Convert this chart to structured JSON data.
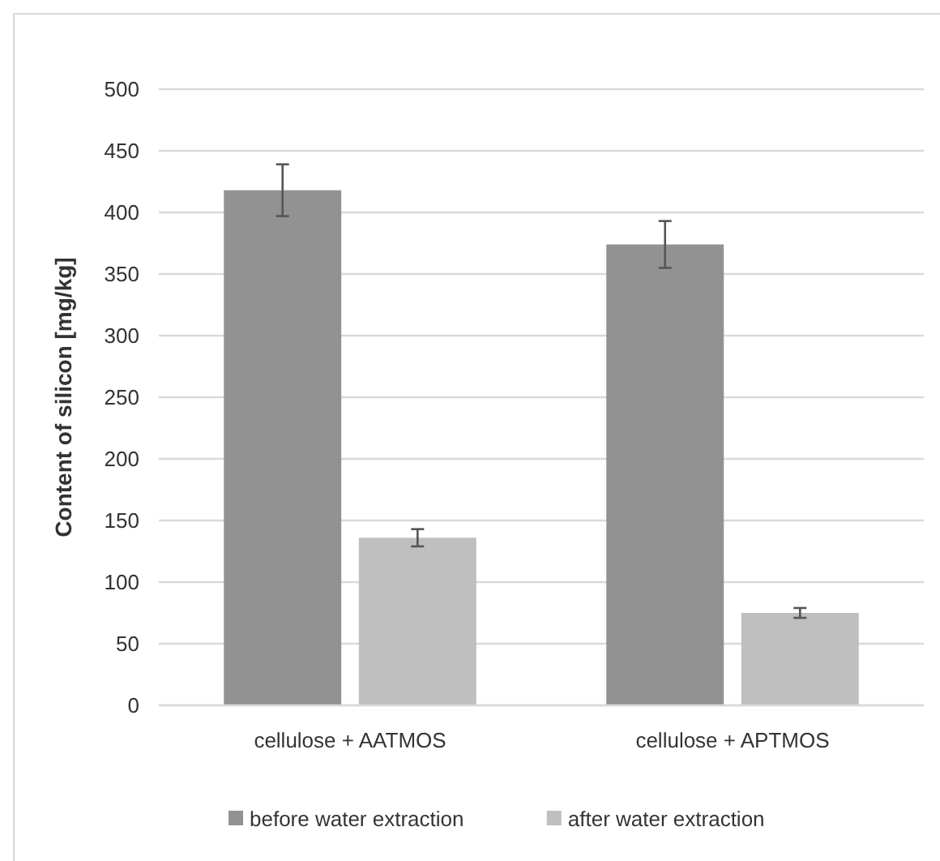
{
  "chart_data": {
    "type": "bar",
    "ylabel": "Content of silicon [mg/kg]",
    "categories": [
      "cellulose + AATMOS",
      "cellulose + APTMOS"
    ],
    "series": [
      {
        "name": "before water extraction",
        "color": "#929292",
        "values": [
          418,
          374
        ],
        "errors": [
          21,
          19
        ]
      },
      {
        "name": "after water extraction",
        "color": "#bfbfbf",
        "values": [
          136,
          75
        ],
        "errors": [
          7,
          4
        ]
      }
    ],
    "ylim": [
      0,
      500
    ],
    "yticks": [
      0,
      50,
      100,
      150,
      200,
      250,
      300,
      350,
      400,
      450,
      500
    ],
    "grid": "y",
    "legend": "bottom"
  }
}
